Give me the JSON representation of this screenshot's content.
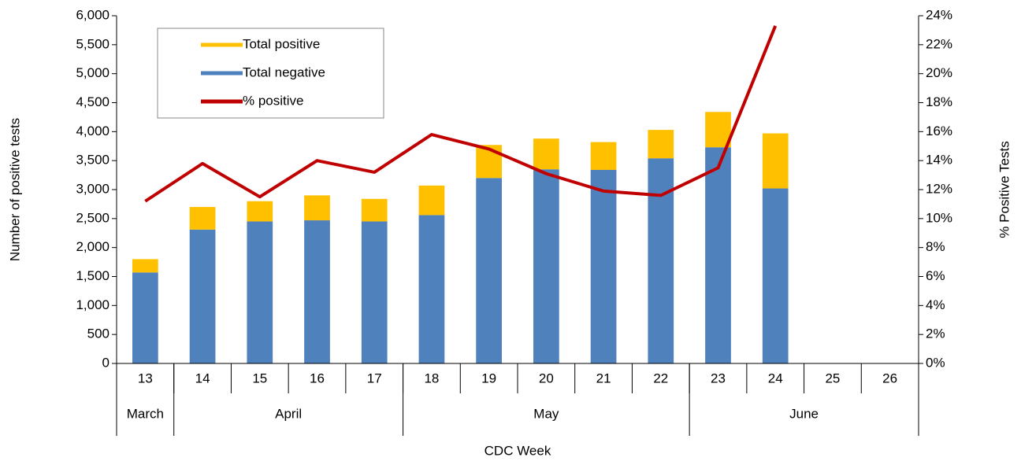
{
  "chart_data": {
    "type": "bar_line",
    "x_title": "CDC Week",
    "y_title": "Number of positive tests",
    "y2_title": "% Positive Tests",
    "categories": [
      "13",
      "14",
      "15",
      "16",
      "17",
      "18",
      "19",
      "20",
      "21",
      "22",
      "23",
      "24",
      "25",
      "26"
    ],
    "groups": [
      {
        "label": "March",
        "count": 1
      },
      {
        "label": "April",
        "count": 4
      },
      {
        "label": "May",
        "count": 5
      },
      {
        "label": "June",
        "count": 4
      }
    ],
    "series": [
      {
        "name": "Total positive",
        "type": "bar",
        "color": "#ffc000",
        "values": [
          230,
          390,
          350,
          430,
          390,
          510,
          570,
          530,
          480,
          490,
          610,
          950,
          null,
          null
        ]
      },
      {
        "name": "Total negative",
        "type": "bar",
        "color": "#4f81bd",
        "values": [
          1570,
          2310,
          2450,
          2470,
          2450,
          2560,
          3200,
          3350,
          3340,
          3540,
          3730,
          3020,
          null,
          null
        ]
      },
      {
        "name": "% positive",
        "type": "line",
        "axis": "y2",
        "color": "#c00000",
        "values": [
          11.2,
          13.8,
          11.5,
          14.0,
          13.2,
          15.8,
          14.8,
          13.1,
          11.9,
          11.6,
          13.5,
          23.3,
          null,
          null
        ]
      }
    ],
    "ylim": [
      0,
      6000
    ],
    "yticks": [
      0,
      500,
      {
        "value": 1000,
        "label": "1,000"
      },
      {
        "value": 1500,
        "label": "1,500"
      },
      {
        "value": 2000,
        "label": "2,000"
      },
      {
        "value": 2500,
        "label": "2,500"
      },
      {
        "value": 3000,
        "label": "3,000"
      },
      {
        "value": 3500,
        "label": "3,500"
      },
      {
        "value": 4000,
        "label": "4,000"
      },
      {
        "value": 4500,
        "label": "4,500"
      },
      {
        "value": 5000,
        "label": "5,000"
      },
      {
        "value": 5500,
        "label": "5,500"
      },
      {
        "value": 6000,
        "label": "6,000"
      }
    ],
    "y2lim": [
      0,
      24
    ],
    "y2ticks": [
      {
        "value": 0,
        "label": "0%"
      },
      {
        "value": 2,
        "label": "2%"
      },
      {
        "value": 4,
        "label": "4%"
      },
      {
        "value": 6,
        "label": "6%"
      },
      {
        "value": 8,
        "label": "8%"
      },
      {
        "value": 10,
        "label": "10%"
      },
      {
        "value": 12,
        "label": "12%"
      },
      {
        "value": 14,
        "label": "14%"
      },
      {
        "value": 16,
        "label": "16%"
      },
      {
        "value": 18,
        "label": "18%"
      },
      {
        "value": 20,
        "label": "20%"
      },
      {
        "value": 22,
        "label": "22%"
      },
      {
        "value": 24,
        "label": "24%"
      }
    ],
    "grid": false,
    "legend": "top-left"
  }
}
